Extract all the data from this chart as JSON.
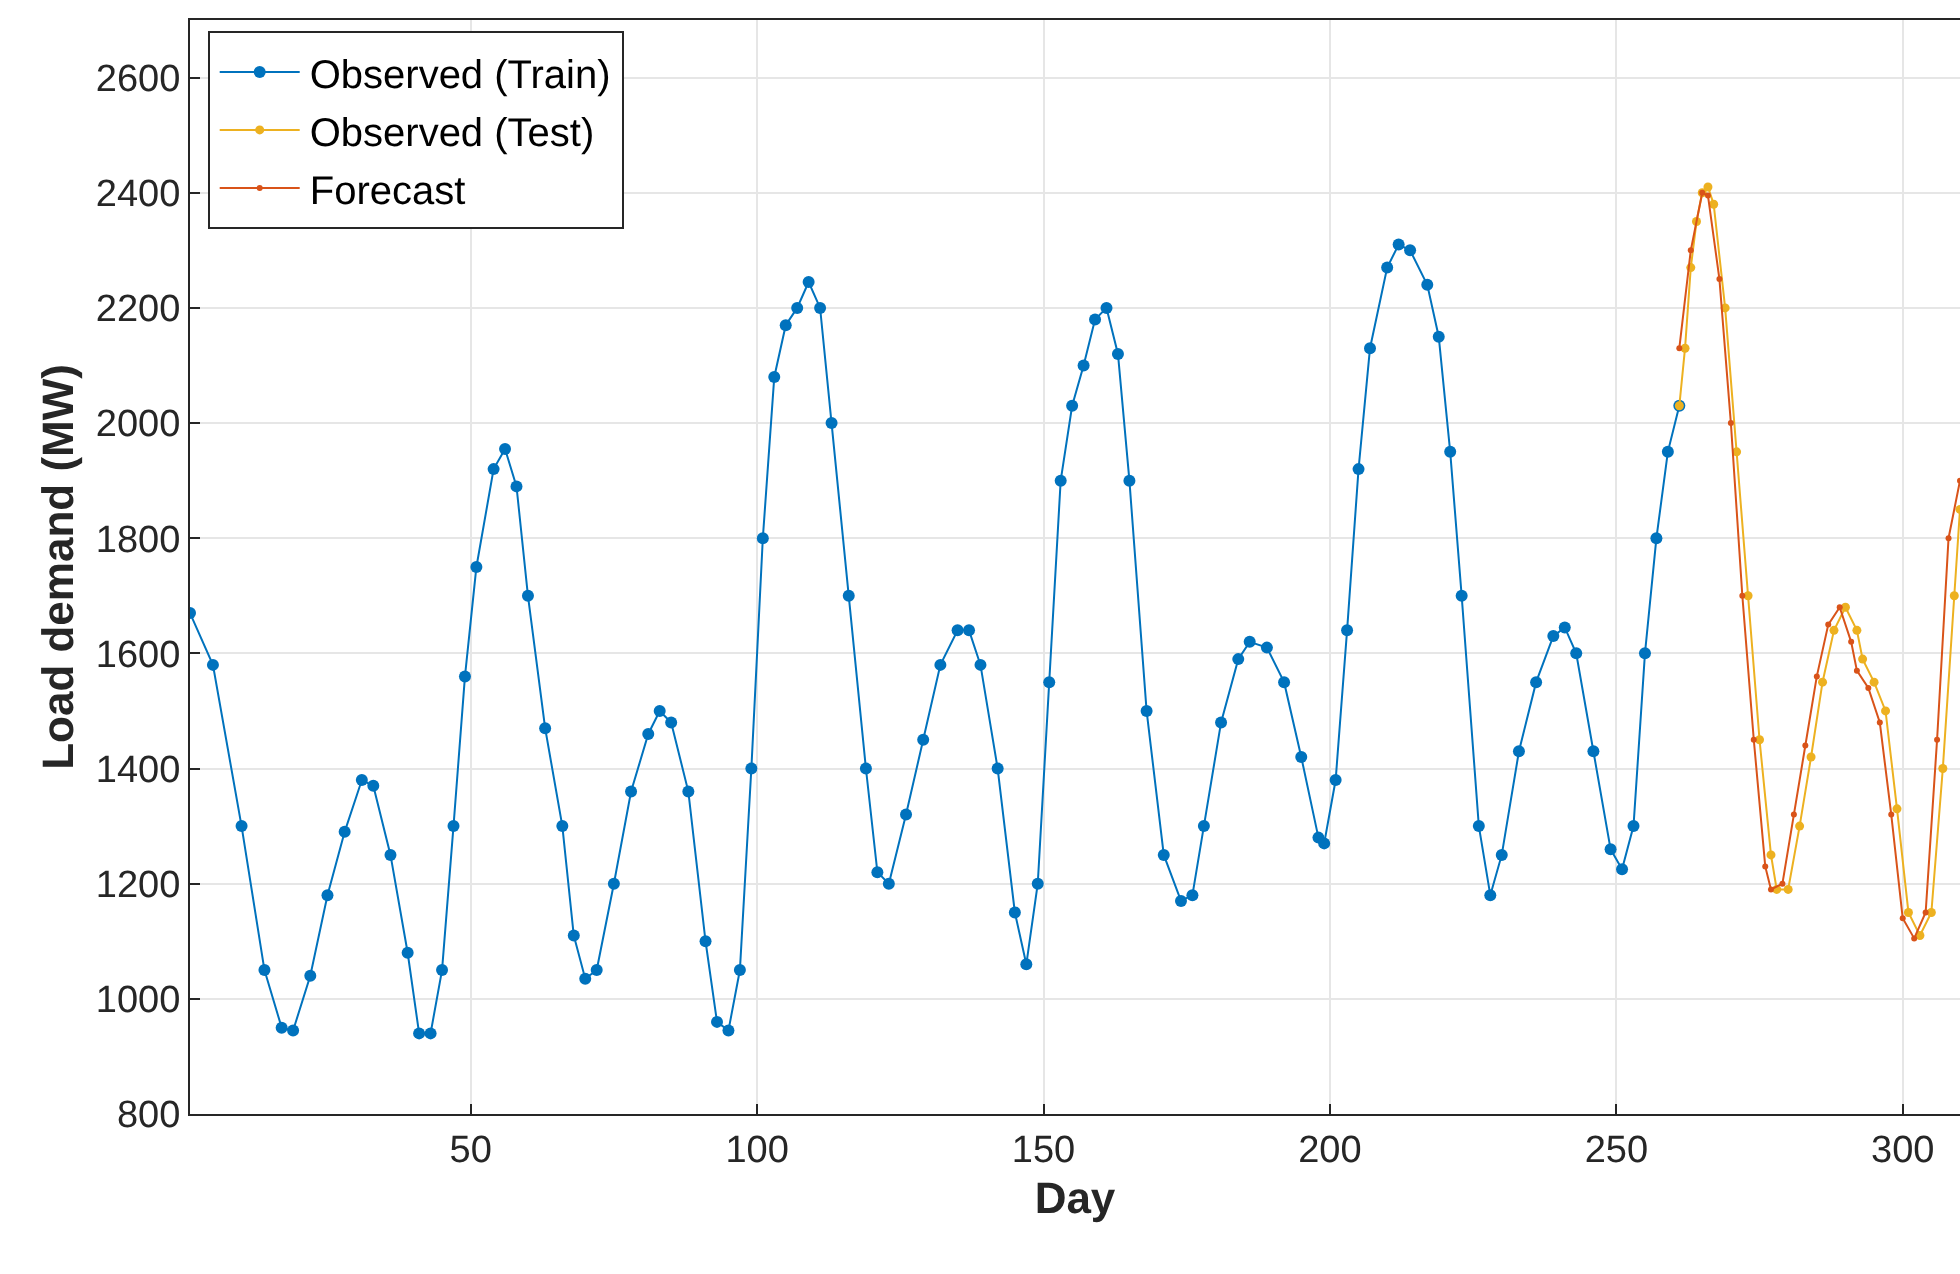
{
  "chart_data": {
    "type": "line",
    "xlabel": "Day",
    "ylabel": "Load demand (MW)",
    "xlim": [
      1,
      310
    ],
    "ylim": [
      800,
      2700
    ],
    "xticks": [
      50,
      100,
      150,
      200,
      250,
      300
    ],
    "yticks": [
      800,
      1000,
      1200,
      1400,
      1600,
      1800,
      2000,
      2200,
      2400,
      2600
    ],
    "grid": true,
    "legend": "top left",
    "marker": "circle",
    "line_style": "solid",
    "series": [
      {
        "name": "Observed (Train)",
        "color": "#0072bd",
        "x": [
          1,
          5,
          10,
          14,
          17,
          19,
          22,
          25,
          28,
          31,
          33,
          36,
          39,
          41,
          43,
          45,
          47,
          49,
          51,
          54,
          56,
          58,
          60,
          63,
          66,
          68,
          70,
          72,
          75,
          78,
          81,
          83,
          85,
          88,
          91,
          93,
          95,
          97,
          99,
          101,
          103,
          105,
          107,
          109,
          111,
          113,
          116,
          119,
          121,
          123,
          126,
          129,
          132,
          135,
          137,
          139,
          142,
          145,
          147,
          149,
          151,
          153,
          155,
          157,
          159,
          161,
          163,
          165,
          168,
          171,
          174,
          176,
          178,
          181,
          184,
          186,
          189,
          192,
          195,
          198,
          199,
          201,
          203,
          205,
          207,
          210,
          212,
          214,
          217,
          219,
          221,
          223,
          226,
          228,
          230,
          233,
          236,
          239,
          241,
          243,
          246,
          249,
          251,
          253,
          255,
          257,
          259,
          261
        ],
        "values": [
          1670,
          1580,
          1300,
          1050,
          950,
          945,
          1040,
          1180,
          1290,
          1380,
          1370,
          1250,
          1080,
          940,
          940,
          1050,
          1300,
          1560,
          1750,
          1920,
          1955,
          1890,
          1700,
          1470,
          1300,
          1110,
          1035,
          1050,
          1200,
          1360,
          1460,
          1500,
          1480,
          1360,
          1100,
          960,
          945,
          1050,
          1400,
          1800,
          2080,
          2170,
          2200,
          2245,
          2200,
          2000,
          1700,
          1400,
          1220,
          1200,
          1320,
          1450,
          1580,
          1640,
          1640,
          1580,
          1400,
          1150,
          1060,
          1200,
          1550,
          1900,
          2030,
          2100,
          2180,
          2200,
          2120,
          1900,
          1500,
          1250,
          1170,
          1180,
          1300,
          1480,
          1590,
          1620,
          1610,
          1550,
          1420,
          1280,
          1270,
          1380,
          1640,
          1920,
          2130,
          2270,
          2310,
          2300,
          2240,
          2150,
          1950,
          1700,
          1300,
          1180,
          1250,
          1430,
          1550,
          1630,
          1645,
          1600,
          1430,
          1260,
          1225,
          1300,
          1600,
          1800,
          1950,
          2030
        ]
      },
      {
        "name": "Observed (Test)",
        "color": "#edb120",
        "x": [
          261,
          262,
          263,
          264,
          265,
          266,
          267,
          269,
          271,
          273,
          275,
          277,
          278,
          280,
          282,
          284,
          286,
          288,
          290,
          292,
          293,
          295,
          297,
          299,
          301,
          303,
          305,
          307,
          309,
          310
        ],
        "values": [
          2030,
          2130,
          2270,
          2350,
          2400,
          2410,
          2380,
          2200,
          1950,
          1700,
          1450,
          1250,
          1190,
          1190,
          1300,
          1420,
          1550,
          1640,
          1680,
          1640,
          1590,
          1550,
          1500,
          1330,
          1150,
          1110,
          1150,
          1400,
          1700,
          1850
        ]
      },
      {
        "name": "Forecast",
        "color": "#d95319",
        "x": [
          261,
          263,
          265,
          266,
          268,
          270,
          272,
          274,
          276,
          277,
          279,
          281,
          283,
          285,
          287,
          289,
          291,
          292,
          294,
          296,
          298,
          300,
          302,
          304,
          306,
          308,
          310
        ],
        "values": [
          2130,
          2300,
          2400,
          2395,
          2250,
          2000,
          1700,
          1450,
          1230,
          1190,
          1200,
          1320,
          1440,
          1560,
          1650,
          1680,
          1620,
          1570,
          1540,
          1480,
          1320,
          1140,
          1105,
          1150,
          1450,
          1800,
          1900
        ]
      }
    ]
  }
}
